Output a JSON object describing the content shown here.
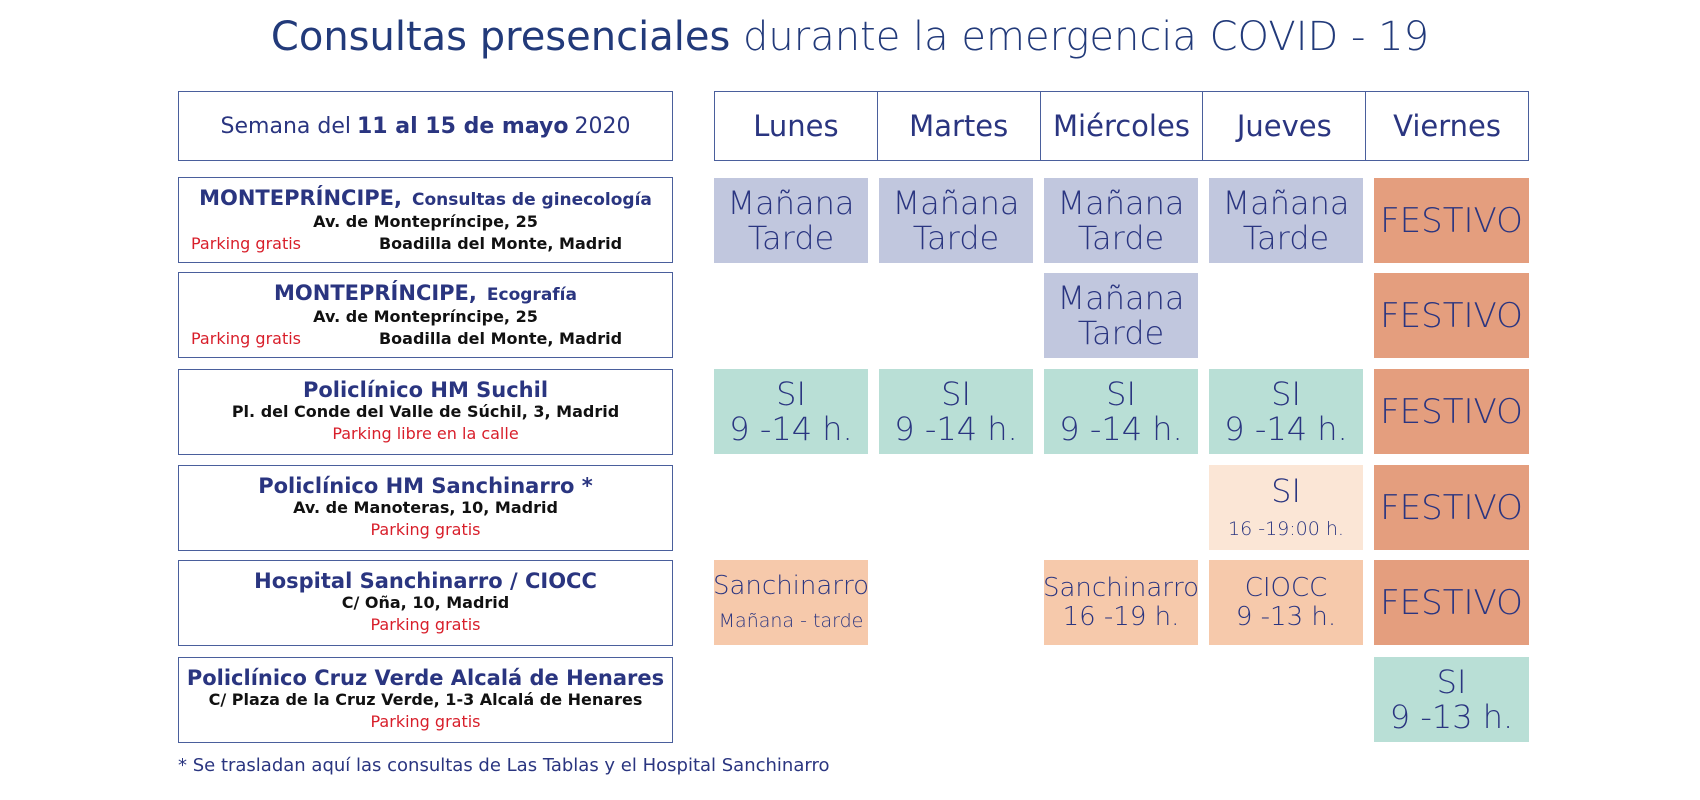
{
  "title": {
    "bold": "Consultas presenciales",
    "rest": "durante la emergencia COVID - 19"
  },
  "week": {
    "prefix": "Semana del",
    "range": "11 al 15 de mayo",
    "year": "2020"
  },
  "days": [
    "Lunes",
    "Martes",
    "Miércoles",
    "Jueves",
    "Viernes"
  ],
  "locations": [
    {
      "name": "MONTEPRÍNCIPE,",
      "sub": "Consultas de ginecología",
      "addr1": "Av. de Montepríncipe, 25",
      "parking": "Parking gratis",
      "addr2": "Boadilla del Monte, Madrid"
    },
    {
      "name": "MONTEPRÍNCIPE,",
      "sub": "Ecografía",
      "addr1": "Av. de Montepríncipe, 25",
      "parking": "Parking gratis",
      "addr2": "Boadilla del Monte, Madrid"
    },
    {
      "name": "Policlínico HM Suchil",
      "addr1": "Pl. del Conde del Valle de Súchil, 3, Madrid",
      "parking": "Parking libre en la calle"
    },
    {
      "name": "Policlínico HM Sanchinarro *",
      "addr1": "Av. de Manoteras, 10, Madrid",
      "parking": "Parking gratis"
    },
    {
      "name": "Hospital Sanchinarro / CIOCC",
      "addr1": "C/ Oña, 10, Madrid",
      "parking": "Parking gratis"
    },
    {
      "name": "Policlínico Cruz Verde Alcalá de Henares",
      "addr1": "C/ Plaza de la Cruz Verde, 1-3 Alcalá de Henares",
      "parking": "Parking gratis"
    }
  ],
  "schedule": {
    "manana": "Mañana",
    "tarde": "Tarde",
    "festivo": "FESTIVO",
    "si": "SI",
    "hours_suchil": "9 -14 h.",
    "hours_sanchinarro_thu": "16 -19:00 h.",
    "sanchinarro": "Sanchinarro",
    "manana_tarde": "Mañana - tarde",
    "hours_sanchinarro_wed": "16 -19 h.",
    "ciocc": "CIOCC",
    "hours_ciocc": "9 -13 h.",
    "hours_cruz_verde": "9 -13 h."
  },
  "colors": {
    "lavender": "#c1c7de",
    "teal": "#b9dfd6",
    "salmon": "#e49e7e",
    "peach": "#f6c9ab",
    "light_peach": "#fbe6d6",
    "navy": "#2a3580",
    "red": "#d81e2a"
  },
  "footnote": "* Se trasladan aquí las consultas de Las Tablas y el Hospital Sanchinarro"
}
